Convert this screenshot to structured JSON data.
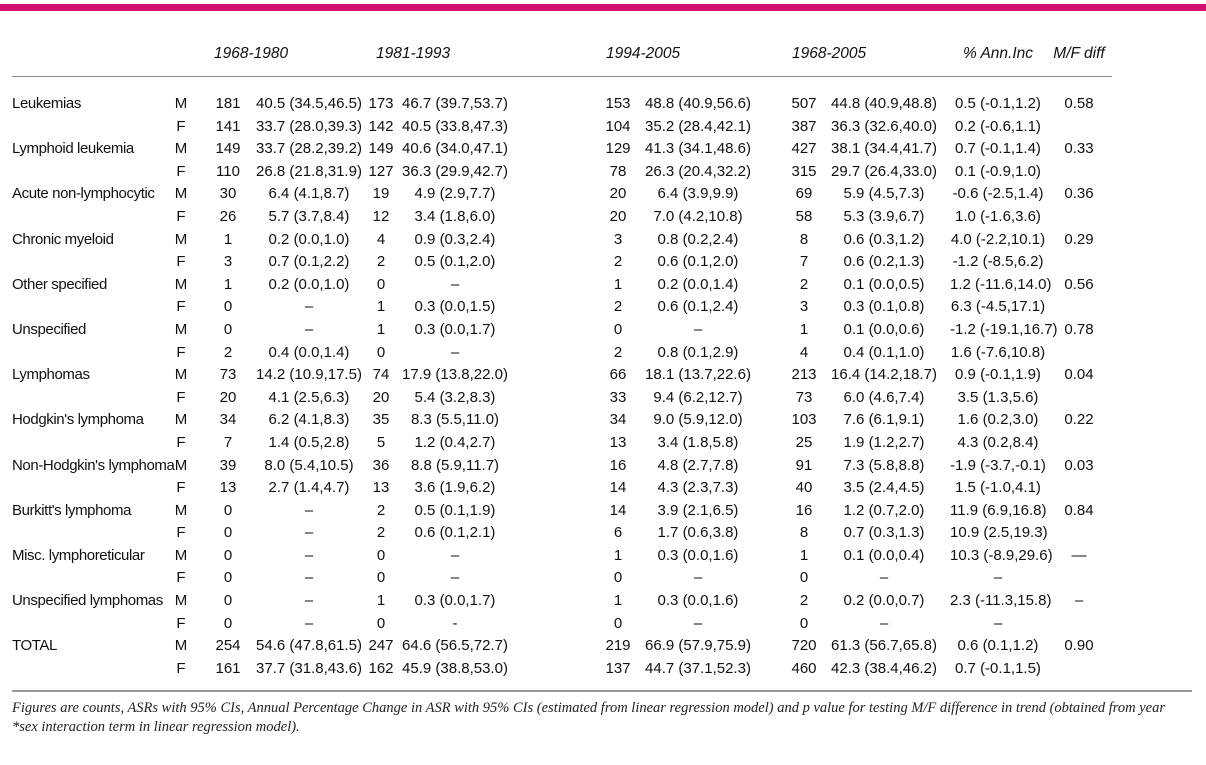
{
  "accent_color": "#d40f6e",
  "table": {
    "period_headers": [
      "1968-1980",
      "1981-1993",
      "1994-2005",
      "1968-2005"
    ],
    "extra_headers": [
      "% Ann.Inc",
      "M/F diff"
    ],
    "rows": [
      {
        "label": "Leukemias",
        "sex": "M",
        "n1": "181",
        "asr1": "40.5 (34.5,46.5)",
        "n2": "173",
        "asr2": "46.7 (39.7,53.7)",
        "n3": "153",
        "asr3": "48.8 (40.9,56.6)",
        "n4": "507",
        "asr4": "44.8 (40.9,48.8)",
        "ann": "0.5 (-0.1,1.2)",
        "diff": "0.58"
      },
      {
        "label": "",
        "sex": "F",
        "n1": "141",
        "asr1": "33.7 (28.0,39.3)",
        "n2": "142",
        "asr2": "40.5 (33.8,47.3)",
        "n3": "104",
        "asr3": "35.2 (28.4,42.1)",
        "n4": "387",
        "asr4": "36.3 (32.6,40.0)",
        "ann": "0.2 (-0.6,1.1)",
        "diff": ""
      },
      {
        "label": "Lymphoid leukemia",
        "sex": "M",
        "n1": "149",
        "asr1": "33.7 (28.2,39.2)",
        "n2": "149",
        "asr2": "40.6 (34.0,47.1)",
        "n3": "129",
        "asr3": "41.3 (34.1,48.6)",
        "n4": "427",
        "asr4": "38.1 (34.4,41.7)",
        "ann": "0.7 (-0.1,1.4)",
        "diff": "0.33"
      },
      {
        "label": "",
        "sex": "F",
        "n1": "110",
        "asr1": "26.8 (21.8,31.9)",
        "n2": "127",
        "asr2": "36.3 (29.9,42.7)",
        "n3": "78",
        "asr3": "26.3 (20.4,32.2)",
        "n4": "315",
        "asr4": "29.7 (26.4,33.0)",
        "ann": "0.1 (-0.9,1.0)",
        "diff": ""
      },
      {
        "label": "Acute non-lymphocytic",
        "sex": "M",
        "n1": "30",
        "asr1": "6.4 (4.1,8.7)",
        "n2": "19",
        "asr2": "4.9 (2.9,7.7)",
        "n3": "20",
        "asr3": "6.4 (3.9,9.9)",
        "n4": "69",
        "asr4": "5.9 (4.5,7.3)",
        "ann": "-0.6 (-2.5,1.4)",
        "diff": "0.36"
      },
      {
        "label": "",
        "sex": "F",
        "n1": "26",
        "asr1": "5.7 (3.7,8.4)",
        "n2": "12",
        "asr2": "3.4 (1.8,6.0)",
        "n3": "20",
        "asr3": "7.0 (4.2,10.8)",
        "n4": "58",
        "asr4": "5.3 (3.9,6.7)",
        "ann": "1.0 (-1.6,3.6)",
        "diff": ""
      },
      {
        "label": "Chronic myeloid",
        "sex": "M",
        "n1": "1",
        "asr1": "0.2 (0.0,1.0)",
        "n2": "4",
        "asr2": "0.9 (0.3,2.4)",
        "n3": "3",
        "asr3": "0.8 (0.2,2.4)",
        "n4": "8",
        "asr4": "0.6 (0.3,1.2)",
        "ann": "4.0 (-2.2,10.1)",
        "diff": "0.29"
      },
      {
        "label": "",
        "sex": "F",
        "n1": "3",
        "asr1": "0.7 (0.1,2.2)",
        "n2": "2",
        "asr2": "0.5 (0.1,2.0)",
        "n3": "2",
        "asr3": "0.6 (0.1,2.0)",
        "n4": "7",
        "asr4": "0.6 (0.2,1.3)",
        "ann": "-1.2 (-8.5,6.2)",
        "diff": ""
      },
      {
        "label": "Other specified",
        "sex": "M",
        "n1": "1",
        "asr1": "0.2 (0.0,1.0)",
        "n2": "0",
        "asr2": "–",
        "n3": "1",
        "asr3": "0.2 (0.0,1.4)",
        "n4": "2",
        "asr4": "0.1 (0.0,0.5)",
        "ann": "1.2 (-11.6,14.0)",
        "diff": "0.56"
      },
      {
        "label": "",
        "sex": "F",
        "n1": "0",
        "asr1": "–",
        "n2": "1",
        "asr2": "0.3 (0.0,1.5)",
        "n3": "2",
        "asr3": "0.6 (0.1,2.4)",
        "n4": "3",
        "asr4": "0.3 (0.1,0.8)",
        "ann": "6.3 (-4.5,17.1)",
        "diff": ""
      },
      {
        "label": "Unspecified",
        "sex": "M",
        "n1": "0",
        "asr1": "–",
        "n2": "1",
        "asr2": "0.3 (0.0,1.7)",
        "n3": "0",
        "asr3": "–",
        "n4": "1",
        "asr4": "0.1 (0.0,0.6)",
        "ann": "-1.2 (-19.1,16.7)",
        "diff": "0.78"
      },
      {
        "label": "",
        "sex": "F",
        "n1": "2",
        "asr1": "0.4 (0.0,1.4)",
        "n2": "0",
        "asr2": "–",
        "n3": "2",
        "asr3": "0.8 (0.1,2.9)",
        "n4": "4",
        "asr4": "0.4 (0.1,1.0)",
        "ann": "1.6 (-7.6,10.8)",
        "diff": ""
      },
      {
        "label": "Lymphomas",
        "sex": "M",
        "n1": "73",
        "asr1": "14.2 (10.9,17.5)",
        "n2": "74",
        "asr2": "17.9 (13.8,22.0)",
        "n3": "66",
        "asr3": "18.1 (13.7,22.6)",
        "n4": "213",
        "asr4": "16.4 (14.2,18.7)",
        "ann": "0.9 (-0.1,1.9)",
        "diff": "0.04"
      },
      {
        "label": "",
        "sex": "F",
        "n1": "20",
        "asr1": "4.1 (2.5,6.3)",
        "n2": "20",
        "asr2": "5.4 (3.2,8.3)",
        "n3": "33",
        "asr3": "9.4 (6.2,12.7)",
        "n4": "73",
        "asr4": "6.0 (4.6,7.4)",
        "ann": "3.5 (1.3,5.6)",
        "diff": ""
      },
      {
        "label": "Hodgkin's lymphoma",
        "sex": "M",
        "n1": "34",
        "asr1": "6.2 (4.1,8.3)",
        "n2": "35",
        "asr2": "8.3 (5.5,11.0)",
        "n3": "34",
        "asr3": "9.0 (5.9,12.0)",
        "n4": "103",
        "asr4": "7.6 (6.1,9.1)",
        "ann": "1.6 (0.2,3.0)",
        "diff": "0.22"
      },
      {
        "label": "",
        "sex": "F",
        "n1": "7",
        "asr1": "1.4 (0.5,2.8)",
        "n2": "5",
        "asr2": "1.2 (0.4,2.7)",
        "n3": "13",
        "asr3": "3.4 (1.8,5.8)",
        "n4": "25",
        "asr4": "1.9 (1.2,2.7)",
        "ann": "4.3 (0.2,8.4)",
        "diff": ""
      },
      {
        "label": "Non-Hodgkin's lymphoma",
        "sex": "M",
        "n1": "39",
        "asr1": "8.0 (5.4,10.5)",
        "n2": "36",
        "asr2": "8.8 (5.9,11.7)",
        "n3": "16",
        "asr3": "4.8 (2.7,7.8)",
        "n4": "91",
        "asr4": "7.3 (5.8,8.8)",
        "ann": "-1.9 (-3.7,-0.1)",
        "diff": "0.03"
      },
      {
        "label": "",
        "sex": "F",
        "n1": "13",
        "asr1": "2.7 (1.4,4.7)",
        "n2": "13",
        "asr2": "3.6 (1.9,6.2)",
        "n3": "14",
        "asr3": "4.3 (2.3,7.3)",
        "n4": "40",
        "asr4": "3.5 (2.4,4.5)",
        "ann": "1.5 (-1.0,4.1)",
        "diff": ""
      },
      {
        "label": "Burkitt's lymphoma",
        "sex": "M",
        "n1": "0",
        "asr1": "–",
        "n2": "2",
        "asr2": "0.5 (0.1,1.9)",
        "n3": "14",
        "asr3": "3.9 (2.1,6.5)",
        "n4": "16",
        "asr4": "1.2 (0.7,2.0)",
        "ann": "11.9 (6.9,16.8)",
        "diff": "0.84"
      },
      {
        "label": "",
        "sex": "F",
        "n1": "0",
        "asr1": "–",
        "n2": "2",
        "asr2": "0.6 (0.1,2.1)",
        "n3": "6",
        "asr3": "1.7 (0.6,3.8)",
        "n4": "8",
        "asr4": "0.7 (0.3,1.3)",
        "ann": "10.9 (2.5,19.3)",
        "diff": ""
      },
      {
        "label": "Misc. lymphoreticular",
        "sex": "M",
        "n1": "0",
        "asr1": "–",
        "n2": "0",
        "asr2": "–",
        "n3": "1",
        "asr3": "0.3 (0.0,1.6)",
        "n4": "1",
        "asr4": "0.1 (0.0,0.4)",
        "ann": "10.3 (-8.9,29.6)",
        "diff": "—"
      },
      {
        "label": "",
        "sex": "F",
        "n1": "0",
        "asr1": "–",
        "n2": "0",
        "asr2": "–",
        "n3": "0",
        "asr3": "–",
        "n4": "0",
        "asr4": "–",
        "ann": "–",
        "diff": ""
      },
      {
        "label": "Unspecified lymphomas",
        "sex": "M",
        "n1": "0",
        "asr1": "–",
        "n2": "1",
        "asr2": "0.3 (0.0,1.7)",
        "n3": "1",
        "asr3": "0.3 (0.0,1.6)",
        "n4": "2",
        "asr4": "0.2 (0.0,0.7)",
        "ann": "2.3 (-11.3,15.8)",
        "diff": "–"
      },
      {
        "label": "",
        "sex": "F",
        "n1": "0",
        "asr1": "–",
        "n2": "0",
        "asr2": "-",
        "n3": "0",
        "asr3": "–",
        "n4": "0",
        "asr4": "–",
        "ann": "–",
        "diff": ""
      },
      {
        "label": "TOTAL",
        "sex": "M",
        "n1": "254",
        "asr1": "54.6 (47.8,61.5)",
        "n2": "247",
        "asr2": "64.6 (56.5,72.7)",
        "n3": "219",
        "asr3": "66.9 (57.9,75.9)",
        "n4": "720",
        "asr4": "61.3 (56.7,65.8)",
        "ann": "0.6 (0.1,1.2)",
        "diff": "0.90"
      },
      {
        "label": "",
        "sex": "F",
        "n1": "161",
        "asr1": "37.7 (31.8,43.6)",
        "n2": "162",
        "asr2": "45.9 (38.8,53.0)",
        "n3": "137",
        "asr3": "44.7 (37.1,52.3)",
        "n4": "460",
        "asr4": "42.3 (38.4,46.2)",
        "ann": "0.7 (-0.1,1.5)",
        "diff": ""
      }
    ]
  },
  "footnote": "Figures are counts, ASRs with 95% CIs, Annual Percentage Change in ASR with 95% CIs (estimated from linear regression model) and p value for testing M/F difference in trend (obtained from year *sex interaction term in linear regression model)."
}
